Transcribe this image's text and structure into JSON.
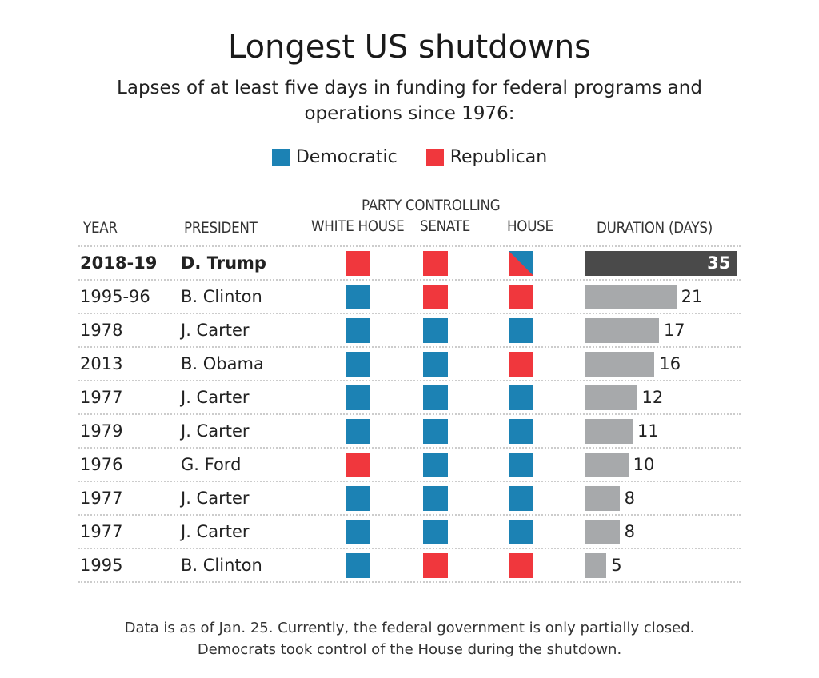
{
  "title": "Longest US shutdowns",
  "subtitle_line1": "Lapses of at least five days in funding for federal programs and",
  "subtitle_line2": "operations since 1976:",
  "colors": {
    "Democratic": "#1c82b4",
    "Republican": "#f0373d",
    "highlight_bar": "#4a4a4a",
    "bar": "#a7a9ab"
  },
  "legend": [
    {
      "label": "Democratic",
      "key": "D"
    },
    {
      "label": "Republican",
      "key": "R"
    }
  ],
  "headers": {
    "year": "YEAR",
    "president": "PRESIDENT",
    "party_group": "PARTY CONTROLLING",
    "white_house": "WHITE HOUSE",
    "senate": "SENATE",
    "house": "HOUSE",
    "duration": "DURATION (DAYS)"
  },
  "chart_data": {
    "type": "table",
    "columns": [
      "Year",
      "President",
      "White House",
      "Senate",
      "House",
      "Duration (days)"
    ],
    "rows": [
      {
        "year": "2018-19",
        "president": "D. Trump",
        "white_house": "R",
        "senate": "R",
        "house": "R/D",
        "duration": 35,
        "highlight": true
      },
      {
        "year": "1995-96",
        "president": "B. Clinton",
        "white_house": "D",
        "senate": "R",
        "house": "R",
        "duration": 21
      },
      {
        "year": "1978",
        "president": "J. Carter",
        "white_house": "D",
        "senate": "D",
        "house": "D",
        "duration": 17
      },
      {
        "year": "2013",
        "president": "B. Obama",
        "white_house": "D",
        "senate": "D",
        "house": "R",
        "duration": 16
      },
      {
        "year": "1977",
        "president": "J. Carter",
        "white_house": "D",
        "senate": "D",
        "house": "D",
        "duration": 12
      },
      {
        "year": "1979",
        "president": "J. Carter",
        "white_house": "D",
        "senate": "D",
        "house": "D",
        "duration": 11
      },
      {
        "year": "1976",
        "president": "G. Ford",
        "white_house": "R",
        "senate": "D",
        "house": "D",
        "duration": 10
      },
      {
        "year": "1977",
        "president": "J. Carter",
        "white_house": "D",
        "senate": "D",
        "house": "D",
        "duration": 8
      },
      {
        "year": "1977",
        "president": "J. Carter",
        "white_house": "D",
        "senate": "D",
        "house": "D",
        "duration": 8
      },
      {
        "year": "1995",
        "president": "B. Clinton",
        "white_house": "D",
        "senate": "R",
        "house": "R",
        "duration": 5
      }
    ]
  },
  "footer_line1": "Data is as of Jan. 25. Currently, the federal government is only partially closed.",
  "footer_line2": "Democrats took control of the House during the shutdown."
}
